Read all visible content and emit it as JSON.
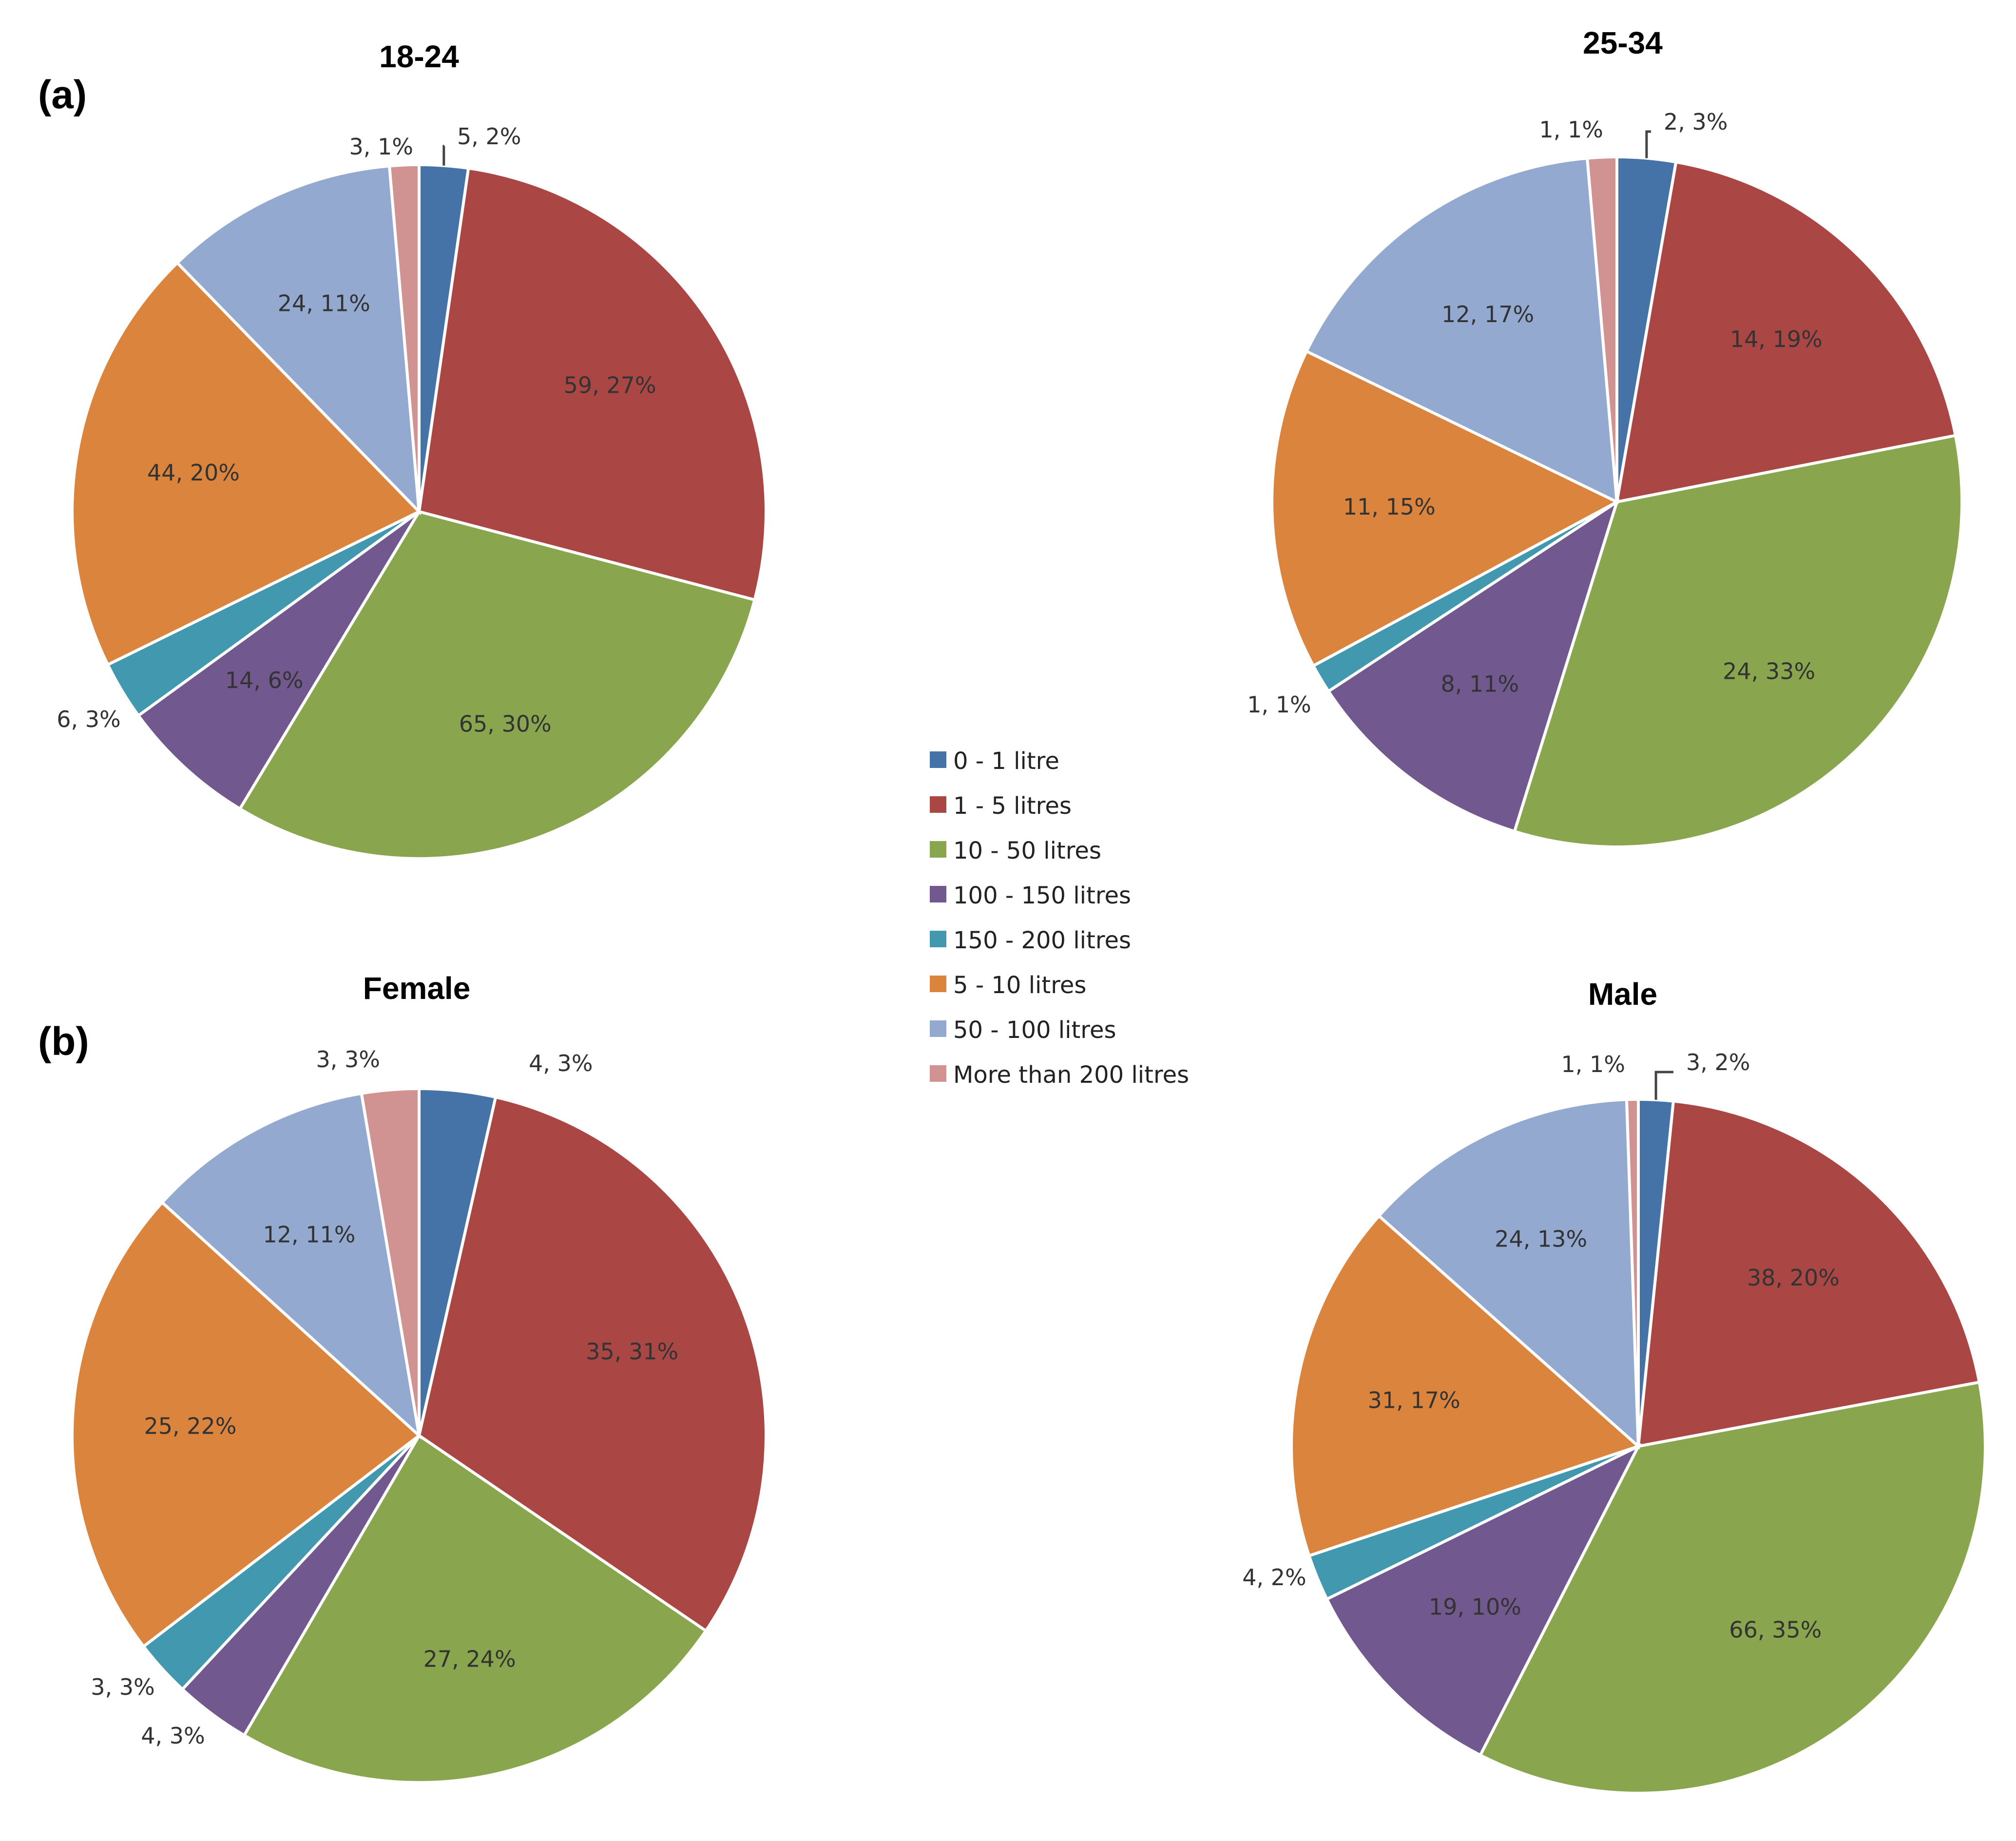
{
  "panel_labels": [
    "(a)",
    "(b)"
  ],
  "legend": {
    "items": [
      {
        "label": "0 - 1 litre",
        "color": "#4572A7"
      },
      {
        "label": "1 - 5 litres",
        "color": "#AA4643"
      },
      {
        "label": "10 - 50 litres",
        "color": "#89A54E"
      },
      {
        "label": "100 - 150 litres",
        "color": "#71588F"
      },
      {
        "label": "150 - 200 litres",
        "color": "#4198AF"
      },
      {
        "label": "5 - 10 litres",
        "color": "#DB843D"
      },
      {
        "label": "50 - 100 litres",
        "color": "#93A9CF"
      },
      {
        "label": "More than 200 litres",
        "color": "#D19392"
      }
    ]
  },
  "chart_data": [
    {
      "type": "pie",
      "title": "18-24",
      "categories": [
        "0 - 1 litre",
        "1 - 5 litres",
        "10 - 50 litres",
        "100 - 150 litres",
        "150 - 200 litres",
        "5 - 10 litres",
        "50 - 100 litres",
        "More than 200 litres"
      ],
      "values": [
        5,
        59,
        65,
        14,
        6,
        44,
        24,
        3
      ],
      "labels": [
        "5, 2%",
        "59, 27%",
        "65, 30%",
        "14, 6%",
        "6, 3%",
        "44, 20%",
        "24, 11%",
        "3, 1%"
      ]
    },
    {
      "type": "pie",
      "title": "25-34",
      "categories": [
        "0 - 1 litre",
        "1 - 5 litres",
        "10 - 50 litres",
        "100 - 150 litres",
        "150 - 200 litres",
        "5 - 10 litres",
        "50 - 100 litres",
        "More than 200 litres"
      ],
      "values": [
        2,
        14,
        24,
        8,
        1,
        11,
        12,
        1
      ],
      "labels": [
        "2, 3%",
        "14, 19%",
        "24, 33%",
        "8, 11%",
        "1, 1%",
        "11, 15%",
        "12, 17%",
        "1, 1%"
      ]
    },
    {
      "type": "pie",
      "title": "Female",
      "categories": [
        "0 - 1 litre",
        "1 - 5 litres",
        "10 - 50 litres",
        "100 - 150 litres",
        "150 - 200 litres",
        "5 - 10 litres",
        "50 - 100 litres",
        "More than 200 litres"
      ],
      "values": [
        4,
        35,
        27,
        4,
        3,
        25,
        12,
        3
      ],
      "labels": [
        "4, 3%",
        "35, 31%",
        "27, 24%",
        "4, 3%",
        "3, 3%",
        "25, 22%",
        "12, 11%",
        "3, 3%"
      ]
    },
    {
      "type": "pie",
      "title": "Male",
      "categories": [
        "0 - 1 litre",
        "1 - 5 litres",
        "10 - 50 litres",
        "100 - 150 litres",
        "150 - 200 litres",
        "5 - 10 litres",
        "50 - 100 litres",
        "More than 200 litres"
      ],
      "values": [
        3,
        38,
        66,
        19,
        4,
        31,
        24,
        1
      ],
      "labels": [
        "3, 2%",
        "38, 20%",
        "66, 35%",
        "19, 10%",
        "4, 2%",
        "31, 17%",
        "24, 13%",
        "1, 1%"
      ]
    }
  ]
}
